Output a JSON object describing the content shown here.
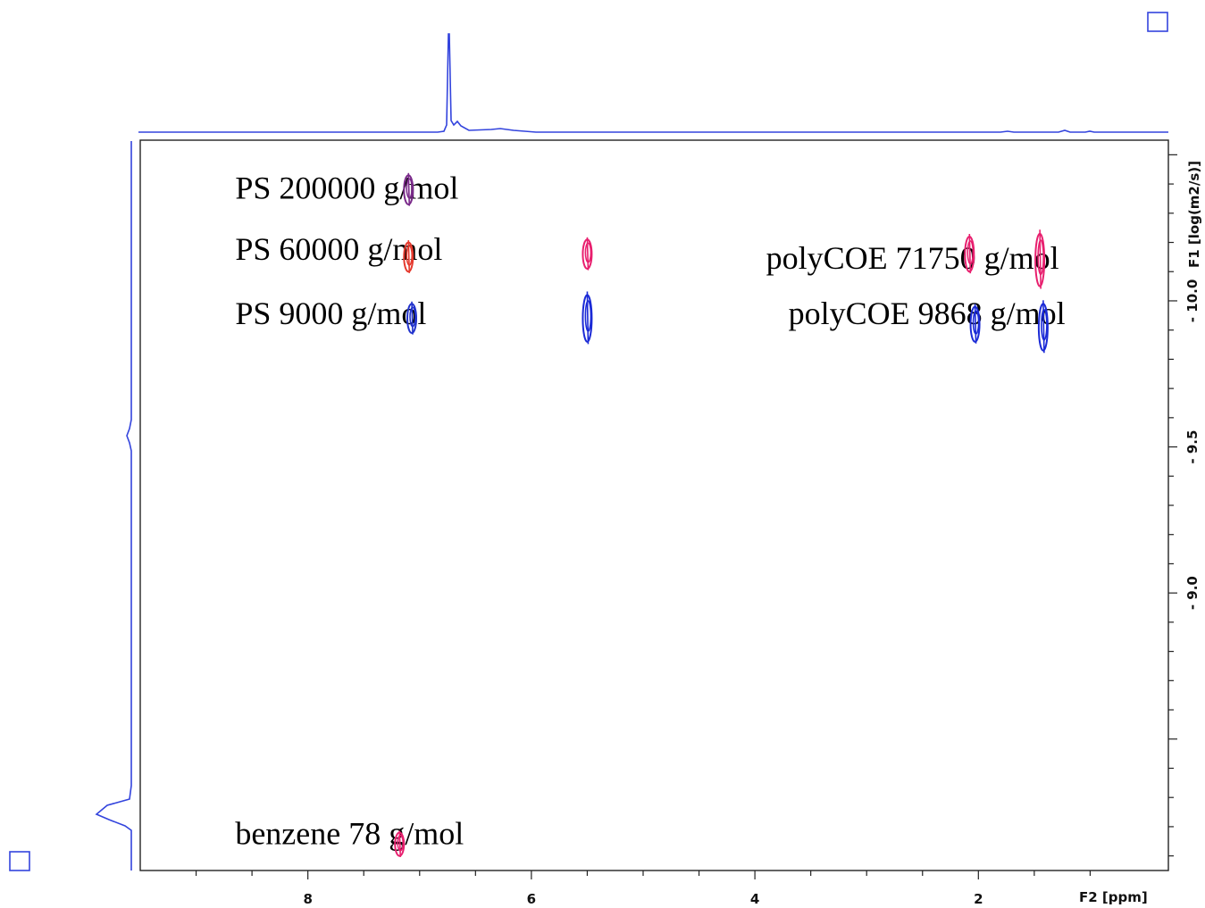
{
  "chart_data": {
    "type": "scatter",
    "subtype": "2D DOSY NMR contour plot",
    "title": "",
    "xlabel": "F2 [ppm]",
    "ylabel": "F1 [log(m2/s)]",
    "xlim": [
      9.5,
      0.3
    ],
    "ylim": [
      -10.55,
      -8.05
    ],
    "x_reversed": true,
    "y_reversed": true,
    "grid": false,
    "x_ticks": [
      8,
      6,
      4,
      2
    ],
    "y_ticks": [
      -10.0,
      -9.5,
      -9.0
    ],
    "y_tick_labels": [
      "- 10.0",
      "- 9.5",
      "- 9.0"
    ],
    "annotations": [
      {
        "text": "PS 200000 g/mol",
        "x": 8.65,
        "y": -10.35
      },
      {
        "text": "PS 60000 g/mol",
        "x": 8.65,
        "y": -10.14
      },
      {
        "text": "PS 9000 g/mol",
        "x": 8.65,
        "y": -9.92
      },
      {
        "text": "polyCOE 71750 g/mol",
        "x": 3.9,
        "y": -10.11
      },
      {
        "text": "polyCOE 9868 g/mol",
        "x": 3.7,
        "y": -9.92
      },
      {
        "text": "benzene 78 g/mol",
        "x": 8.65,
        "y": -8.14
      }
    ],
    "series": [
      {
        "name": "PS 200000 g/mol",
        "color": "#7a2a8a",
        "points": [
          {
            "x": 7.1,
            "y": -10.38,
            "dy": 0.05
          }
        ]
      },
      {
        "name": "PS 60000 g/mol",
        "color": "#e53a2e",
        "points": [
          {
            "x": 7.1,
            "y": -10.15,
            "dy": 0.05
          }
        ]
      },
      {
        "name": "PS 9000 g/mol",
        "color": "#2233cc",
        "points": [
          {
            "x": 7.07,
            "y": -9.94,
            "dy": 0.05
          }
        ]
      },
      {
        "name": "polyCOE 71750 g/mol",
        "color": "#e81f6e",
        "points": [
          {
            "x": 5.5,
            "y": -10.16,
            "dy": 0.05
          },
          {
            "x": 2.08,
            "y": -10.16,
            "dy": 0.06
          },
          {
            "x": 1.45,
            "y": -10.14,
            "dy": 0.09
          }
        ]
      },
      {
        "name": "polyCOE 9868 g/mol",
        "color": "#1b2ad6",
        "points": [
          {
            "x": 5.5,
            "y": -9.94,
            "dy": 0.08
          },
          {
            "x": 2.03,
            "y": -9.92,
            "dy": 0.06
          },
          {
            "x": 1.42,
            "y": -9.91,
            "dy": 0.08
          }
        ]
      },
      {
        "name": "benzene 78 g/mol",
        "color": "#e81f6e",
        "points": [
          {
            "x": 7.18,
            "y": -8.14,
            "dy": 0.04
          }
        ]
      }
    ]
  }
}
